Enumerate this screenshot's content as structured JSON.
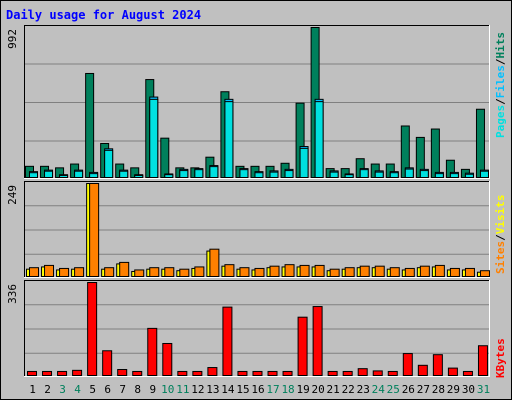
{
  "title": "Daily usage for August 2024",
  "colors": {
    "background": "#C0C0C0",
    "frame": "#FFFFFF",
    "title": "#0000FF",
    "hits": "#00805C",
    "files": "#00C0FF",
    "pages": "#00E0E0",
    "visits": "#FFFF00",
    "sites": "#FF8000",
    "kbytes": "#FF0000",
    "weekend_label": "#00805C",
    "weekday_label": "#000000"
  },
  "chart_data": [
    {
      "type": "bar",
      "title": "Daily usage for August 2024",
      "panel": "hits-files-pages",
      "max_label": "992",
      "ylim": [
        0,
        992
      ],
      "legend": {
        "pages": "Pages",
        "files": "Files",
        "hits": "Hits",
        "separator": "/"
      },
      "categories": [
        "1",
        "2",
        "3",
        "4",
        "5",
        "6",
        "7",
        "8",
        "9",
        "10",
        "11",
        "12",
        "13",
        "14",
        "15",
        "16",
        "17",
        "18",
        "19",
        "20",
        "21",
        "22",
        "23",
        "24",
        "25",
        "26",
        "27",
        "28",
        "29",
        "30",
        "31"
      ],
      "series": [
        {
          "name": "Hits",
          "values": [
            80,
            80,
            70,
            95,
            690,
            230,
            95,
            70,
            650,
            265,
            70,
            70,
            140,
            570,
            80,
            80,
            80,
            100,
            495,
            992,
            65,
            65,
            130,
            95,
            95,
            345,
            270,
            325,
            120,
            60,
            455
          ]
        },
        {
          "name": "Files",
          "values": [
            45,
            55,
            25,
            55,
            40,
            195,
            55,
            25,
            535,
            30,
            60,
            65,
            85,
            520,
            65,
            45,
            50,
            60,
            210,
            520,
            50,
            30,
            65,
            50,
            45,
            70,
            60,
            40,
            40,
            35,
            55
          ]
        },
        {
          "name": "Pages",
          "values": [
            38,
            48,
            20,
            48,
            32,
            185,
            48,
            20,
            520,
            25,
            52,
            58,
            78,
            505,
            58,
            38,
            42,
            52,
            198,
            505,
            42,
            25,
            58,
            42,
            38,
            62,
            52,
            32,
            32,
            28,
            48
          ]
        }
      ]
    },
    {
      "type": "bar",
      "panel": "visits-sites",
      "max_label": "249",
      "ylim": [
        0,
        249
      ],
      "legend": {
        "sites": "Sites",
        "visits": "Visits",
        "separator": "/"
      },
      "categories": [
        "1",
        "2",
        "3",
        "4",
        "5",
        "6",
        "7",
        "8",
        "9",
        "10",
        "11",
        "12",
        "13",
        "14",
        "15",
        "16",
        "17",
        "18",
        "19",
        "20",
        "21",
        "22",
        "23",
        "24",
        "25",
        "26",
        "27",
        "28",
        "29",
        "30",
        "31"
      ],
      "series": [
        {
          "name": "Visits",
          "values": [
            22,
            28,
            20,
            22,
            249,
            22,
            36,
            16,
            22,
            22,
            18,
            24,
            70,
            30,
            22,
            20,
            26,
            28,
            28,
            28,
            18,
            22,
            26,
            26,
            22,
            20,
            26,
            28,
            20,
            20,
            14
          ]
        },
        {
          "name": "Sites",
          "values": [
            26,
            32,
            24,
            26,
            249,
            26,
            40,
            20,
            26,
            26,
            22,
            28,
            75,
            34,
            26,
            24,
            30,
            34,
            32,
            32,
            22,
            26,
            30,
            30,
            26,
            24,
            30,
            32,
            24,
            24,
            18
          ]
        }
      ]
    },
    {
      "type": "bar",
      "panel": "kbytes",
      "max_label": "336",
      "ylim": [
        0,
        336
      ],
      "legend": {
        "kbytes": "KBytes"
      },
      "categories": [
        "1",
        "2",
        "3",
        "4",
        "5",
        "6",
        "7",
        "8",
        "9",
        "10",
        "11",
        "12",
        "13",
        "14",
        "15",
        "16",
        "17",
        "18",
        "19",
        "20",
        "21",
        "22",
        "23",
        "24",
        "25",
        "26",
        "27",
        "28",
        "29",
        "30",
        "31"
      ],
      "series": [
        {
          "name": "KBytes",
          "values": [
            18,
            18,
            18,
            22,
            336,
            92,
            25,
            18,
            172,
            118,
            18,
            18,
            32,
            248,
            18,
            18,
            18,
            18,
            212,
            250,
            18,
            18,
            28,
            20,
            18,
            82,
            40,
            78,
            30,
            18,
            110
          ]
        }
      ]
    }
  ],
  "day_labels": [
    "1",
    "2",
    "3",
    "4",
    "5",
    "6",
    "7",
    "8",
    "9",
    "10",
    "11",
    "12",
    "13",
    "14",
    "15",
    "16",
    "17",
    "18",
    "19",
    "20",
    "21",
    "22",
    "23",
    "24",
    "25",
    "26",
    "27",
    "28",
    "29",
    "30",
    "31"
  ],
  "weekend_days": [
    3,
    4,
    10,
    11,
    17,
    18,
    24,
    25,
    31
  ]
}
